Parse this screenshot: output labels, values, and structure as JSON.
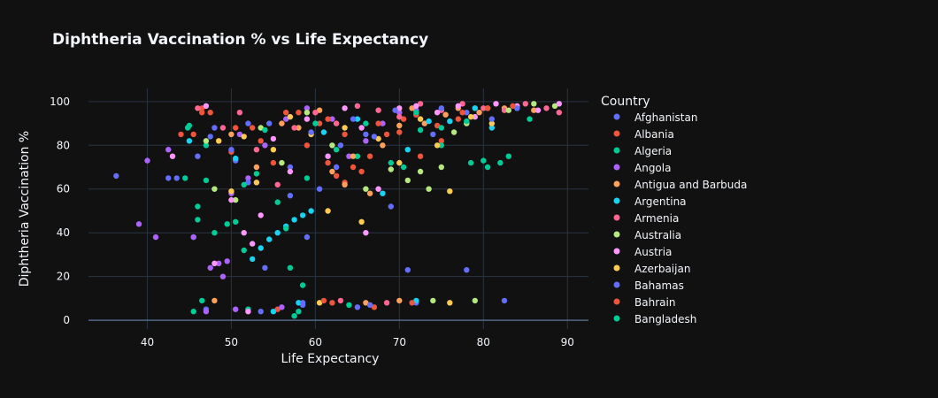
{
  "chart_data": {
    "type": "scatter",
    "title": "Diphtheria Vaccination % vs Life Expectancy",
    "xlabel": "Life Expectancy",
    "ylabel": "Diphtheria Vaccination %",
    "xlim": [
      33,
      92.5
    ],
    "ylim": [
      -4,
      106
    ],
    "xticks": [
      40,
      50,
      60,
      70,
      80,
      90
    ],
    "yticks": [
      0,
      20,
      40,
      60,
      80,
      100
    ],
    "grid": true,
    "legend": {
      "title": "Country",
      "placement": "right"
    },
    "series": [
      {
        "name": "Afghanistan",
        "color": "#636efa",
        "points": [
          [
            36.3,
            66
          ],
          [
            42.5,
            65
          ],
          [
            43.5,
            65
          ],
          [
            46.0,
            75
          ],
          [
            48.0,
            88
          ],
          [
            50.5,
            73
          ],
          [
            52.0,
            90
          ],
          [
            54.0,
            24
          ],
          [
            57.0,
            70
          ],
          [
            59.0,
            38
          ],
          [
            60.5,
            60
          ],
          [
            63.0,
            80
          ],
          [
            66.0,
            85
          ],
          [
            69.0,
            52
          ],
          [
            71.0,
            23
          ],
          [
            74.0,
            85
          ],
          [
            78.0,
            23
          ],
          [
            82.5,
            9
          ],
          [
            47.0,
            5
          ],
          [
            53.5,
            4
          ],
          [
            58.5,
            7
          ],
          [
            65.0,
            6
          ],
          [
            72.0,
            8
          ]
        ]
      },
      {
        "name": "Albania",
        "color": "#EF553B",
        "points": [
          [
            44.0,
            85
          ],
          [
            45.5,
            85
          ],
          [
            46.5,
            97
          ],
          [
            47.5,
            95
          ],
          [
            50.0,
            77
          ],
          [
            52.5,
            88
          ],
          [
            55.0,
            72
          ],
          [
            58.0,
            95
          ],
          [
            60.5,
            90
          ],
          [
            61.5,
            72
          ],
          [
            62.5,
            66
          ],
          [
            63.5,
            63
          ],
          [
            64.5,
            70
          ],
          [
            66.5,
            75
          ],
          [
            68.5,
            85
          ],
          [
            70.5,
            92
          ],
          [
            72.5,
            75
          ],
          [
            75.0,
            82
          ],
          [
            77.0,
            92
          ],
          [
            79.0,
            97
          ],
          [
            55.5,
            5
          ],
          [
            62.0,
            8
          ],
          [
            67.0,
            6
          ]
        ]
      },
      {
        "name": "Algeria",
        "color": "#00cc96",
        "points": [
          [
            44.5,
            65
          ],
          [
            45.0,
            89
          ],
          [
            45.5,
            38
          ],
          [
            46.0,
            52
          ],
          [
            47.0,
            80
          ],
          [
            48.0,
            40
          ],
          [
            50.5,
            45
          ],
          [
            51.5,
            32
          ],
          [
            53.0,
            67
          ],
          [
            55.5,
            54
          ],
          [
            57.0,
            24
          ],
          [
            58.5,
            16
          ],
          [
            60.0,
            90
          ],
          [
            65.0,
            75
          ],
          [
            70.5,
            70
          ],
          [
            72.5,
            87
          ],
          [
            75.0,
            80
          ],
          [
            78.5,
            72
          ],
          [
            80.0,
            73
          ],
          [
            82.0,
            72
          ],
          [
            45.5,
            4
          ],
          [
            52.0,
            5
          ],
          [
            57.5,
            2
          ],
          [
            64.0,
            7
          ]
        ]
      },
      {
        "name": "Angola",
        "color": "#ab63fa",
        "points": [
          [
            39.0,
            44
          ],
          [
            40.0,
            73
          ],
          [
            41.0,
            38
          ],
          [
            42.5,
            78
          ],
          [
            45.5,
            38
          ],
          [
            47.5,
            24
          ],
          [
            48.5,
            26
          ],
          [
            49.0,
            20
          ],
          [
            49.5,
            27
          ],
          [
            50.0,
            58
          ],
          [
            51.0,
            85
          ],
          [
            52.0,
            65
          ],
          [
            54.0,
            80
          ],
          [
            56.5,
            92
          ],
          [
            59.0,
            97
          ],
          [
            62.0,
            92
          ],
          [
            64.0,
            75
          ],
          [
            66.0,
            82
          ],
          [
            68.0,
            90
          ],
          [
            70.0,
            95
          ],
          [
            72.0,
            96
          ],
          [
            47.0,
            4
          ],
          [
            50.5,
            5
          ],
          [
            56.0,
            6
          ]
        ]
      },
      {
        "name": "Antigua and Barbuda",
        "color": "#FFA15A",
        "points": [
          [
            48.0,
            9
          ],
          [
            50.0,
            85
          ],
          [
            53.0,
            70
          ],
          [
            56.0,
            90
          ],
          [
            58.0,
            88
          ],
          [
            60.5,
            96
          ],
          [
            62.0,
            68
          ],
          [
            63.5,
            62
          ],
          [
            64.5,
            75
          ],
          [
            66.5,
            58
          ],
          [
            68.0,
            80
          ],
          [
            70.0,
            89
          ],
          [
            71.5,
            97
          ],
          [
            73.0,
            90
          ],
          [
            75.5,
            94
          ],
          [
            77.0,
            97
          ],
          [
            79.5,
            95
          ],
          [
            82.5,
            97
          ],
          [
            86.0,
            96
          ],
          [
            66.0,
            8
          ],
          [
            70.0,
            9
          ]
        ]
      },
      {
        "name": "Argentina",
        "color": "#19d3f3",
        "points": [
          [
            45.0,
            82
          ],
          [
            50.5,
            74
          ],
          [
            52.5,
            28
          ],
          [
            53.5,
            33
          ],
          [
            54.5,
            37
          ],
          [
            55.5,
            40
          ],
          [
            56.5,
            43
          ],
          [
            57.5,
            46
          ],
          [
            58.5,
            48
          ],
          [
            59.5,
            50
          ],
          [
            61.0,
            86
          ],
          [
            65.0,
            92
          ],
          [
            68.0,
            58
          ],
          [
            71.0,
            78
          ],
          [
            73.5,
            91
          ],
          [
            76.0,
            91
          ],
          [
            79.0,
            97
          ],
          [
            81.0,
            88
          ],
          [
            84.0,
            97
          ],
          [
            58.0,
            8
          ],
          [
            72.0,
            9
          ],
          [
            55.0,
            4
          ]
        ]
      },
      {
        "name": "Armenia",
        "color": "#FF6692",
        "points": [
          [
            46.0,
            97
          ],
          [
            49.0,
            88
          ],
          [
            51.0,
            95
          ],
          [
            53.0,
            78
          ],
          [
            55.5,
            62
          ],
          [
            57.5,
            88
          ],
          [
            60.0,
            95
          ],
          [
            62.5,
            90
          ],
          [
            65.0,
            98
          ],
          [
            67.5,
            96
          ],
          [
            70.0,
            93
          ],
          [
            72.5,
            99
          ],
          [
            75.0,
            96
          ],
          [
            77.5,
            99
          ],
          [
            80.0,
            97
          ],
          [
            82.5,
            96
          ],
          [
            85.0,
            99
          ],
          [
            87.5,
            97
          ],
          [
            89.0,
            95
          ],
          [
            63.0,
            9
          ],
          [
            68.5,
            8
          ]
        ]
      },
      {
        "name": "Australia",
        "color": "#B6E880",
        "points": [
          [
            47.0,
            82
          ],
          [
            48.0,
            60
          ],
          [
            50.5,
            55
          ],
          [
            53.5,
            88
          ],
          [
            56.0,
            72
          ],
          [
            59.0,
            95
          ],
          [
            62.0,
            80
          ],
          [
            66.0,
            60
          ],
          [
            69.0,
            69
          ],
          [
            71.0,
            64
          ],
          [
            72.5,
            68
          ],
          [
            73.5,
            60
          ],
          [
            75.0,
            70
          ],
          [
            76.5,
            86
          ],
          [
            78.0,
            90
          ],
          [
            80.5,
            97
          ],
          [
            83.0,
            96
          ],
          [
            86.0,
            99
          ],
          [
            88.5,
            98
          ],
          [
            74.0,
            9
          ],
          [
            79.0,
            9
          ]
        ]
      },
      {
        "name": "Austria",
        "color": "#FF97FF",
        "points": [
          [
            43.0,
            75
          ],
          [
            47.0,
            98
          ],
          [
            48.0,
            26
          ],
          [
            50.0,
            55
          ],
          [
            51.5,
            40
          ],
          [
            52.5,
            35
          ],
          [
            53.5,
            48
          ],
          [
            55.0,
            83
          ],
          [
            57.0,
            68
          ],
          [
            59.0,
            92
          ],
          [
            61.5,
            75
          ],
          [
            63.5,
            97
          ],
          [
            65.5,
            88
          ],
          [
            67.5,
            60
          ],
          [
            70.0,
            97
          ],
          [
            72.0,
            98
          ],
          [
            74.5,
            95
          ],
          [
            77.0,
            98
          ],
          [
            79.0,
            93
          ],
          [
            81.5,
            99
          ],
          [
            84.0,
            98
          ],
          [
            86.5,
            96
          ],
          [
            89.0,
            99
          ],
          [
            66.0,
            40
          ],
          [
            52.0,
            4
          ]
        ]
      },
      {
        "name": "Azerbaijan",
        "color": "#FECB52",
        "points": [
          [
            48.5,
            82
          ],
          [
            50.0,
            59
          ],
          [
            51.5,
            84
          ],
          [
            53.0,
            63
          ],
          [
            55.0,
            78
          ],
          [
            57.0,
            93
          ],
          [
            59.5,
            85
          ],
          [
            61.5,
            50
          ],
          [
            63.5,
            88
          ],
          [
            65.5,
            45
          ],
          [
            67.5,
            83
          ],
          [
            70.0,
            72
          ],
          [
            72.5,
            92
          ],
          [
            74.5,
            80
          ],
          [
            76.0,
            59
          ],
          [
            78.5,
            93
          ],
          [
            81.0,
            90
          ],
          [
            60.5,
            8
          ],
          [
            76.0,
            8
          ]
        ]
      },
      {
        "name": "Bahamas",
        "color": "#636efa",
        "points": [
          [
            47.5,
            84
          ],
          [
            50.0,
            78
          ],
          [
            52.0,
            63
          ],
          [
            54.5,
            90
          ],
          [
            57.0,
            57
          ],
          [
            59.5,
            86
          ],
          [
            62.5,
            70
          ],
          [
            64.5,
            92
          ],
          [
            67.0,
            84
          ],
          [
            69.5,
            96
          ],
          [
            72.0,
            94
          ],
          [
            75.0,
            97
          ],
          [
            78.0,
            95
          ],
          [
            81.0,
            92
          ],
          [
            84.0,
            97
          ],
          [
            58.5,
            8
          ],
          [
            66.5,
            7
          ]
        ]
      },
      {
        "name": "Bahrain",
        "color": "#EF553B",
        "points": [
          [
            46.5,
            95
          ],
          [
            50.5,
            88
          ],
          [
            53.5,
            82
          ],
          [
            56.5,
            95
          ],
          [
            59.0,
            80
          ],
          [
            61.5,
            92
          ],
          [
            63.5,
            85
          ],
          [
            65.5,
            68
          ],
          [
            67.5,
            90
          ],
          [
            70.0,
            86
          ],
          [
            72.0,
            94
          ],
          [
            74.5,
            89
          ],
          [
            77.5,
            95
          ],
          [
            80.5,
            97
          ],
          [
            83.5,
            98
          ],
          [
            61.0,
            9
          ],
          [
            71.5,
            8
          ]
        ]
      },
      {
        "name": "Bangladesh",
        "color": "#00cc96",
        "points": [
          [
            44.8,
            88
          ],
          [
            46.0,
            46
          ],
          [
            47.0,
            64
          ],
          [
            49.5,
            44
          ],
          [
            51.5,
            62
          ],
          [
            54.0,
            87
          ],
          [
            56.5,
            42
          ],
          [
            59.0,
            65
          ],
          [
            62.5,
            78
          ],
          [
            66.0,
            90
          ],
          [
            69.0,
            72
          ],
          [
            72.0,
            95
          ],
          [
            75.0,
            88
          ],
          [
            78.0,
            91
          ],
          [
            80.5,
            70
          ],
          [
            83.0,
            75
          ],
          [
            85.5,
            92
          ],
          [
            46.5,
            9
          ],
          [
            58.0,
            4
          ]
        ]
      }
    ]
  }
}
